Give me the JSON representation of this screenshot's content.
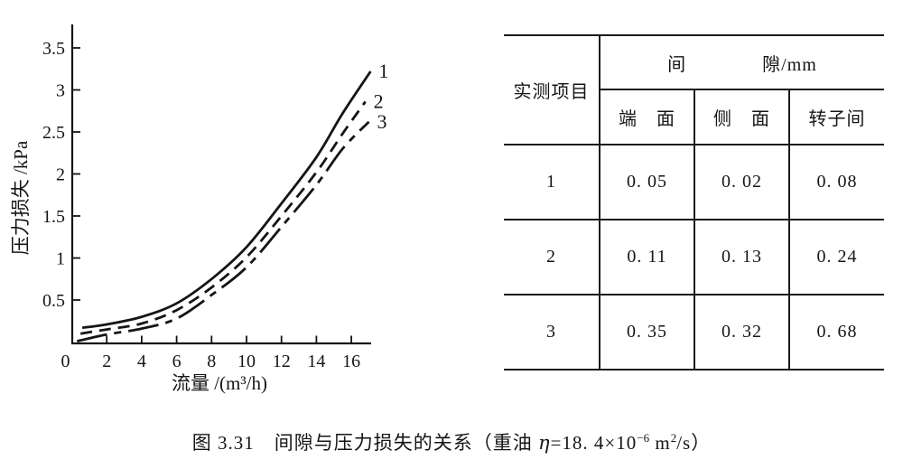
{
  "chart_data": {
    "type": "line",
    "title": "",
    "xlabel": "流量 /(m³/h)",
    "ylabel": "压力损失 /kPa",
    "xlim": [
      0,
      17.2
    ],
    "ylim": [
      0,
      3.8
    ],
    "x_ticks": [
      0,
      2,
      4,
      6,
      8,
      10,
      12,
      14,
      16
    ],
    "y_ticks": [
      0.5,
      1,
      1.5,
      2,
      2.5,
      3,
      3.5
    ],
    "grid": false,
    "legend_position": "labels-at-line-ends",
    "series": [
      {
        "name": "1",
        "style": "solid",
        "points": [
          [
            0.6,
            0.17
          ],
          [
            2,
            0.21
          ],
          [
            4,
            0.3
          ],
          [
            6,
            0.46
          ],
          [
            8,
            0.75
          ],
          [
            10,
            1.13
          ],
          [
            12,
            1.65
          ],
          [
            14,
            2.2
          ],
          [
            15.5,
            2.72
          ],
          [
            17.1,
            3.22
          ]
        ]
      },
      {
        "name": "2",
        "style": "dashed",
        "points": [
          [
            0.5,
            0.1
          ],
          [
            2,
            0.15
          ],
          [
            4,
            0.22
          ],
          [
            6,
            0.38
          ],
          [
            8,
            0.65
          ],
          [
            10,
            1.01
          ],
          [
            12,
            1.5
          ],
          [
            14,
            2.02
          ],
          [
            15.5,
            2.48
          ],
          [
            16.8,
            2.86
          ]
        ]
      },
      {
        "name": "3",
        "style": "dashdot",
        "points": [
          [
            0.3,
            0.01
          ],
          [
            2,
            0.09
          ],
          [
            4,
            0.16
          ],
          [
            6,
            0.28
          ],
          [
            8,
            0.56
          ],
          [
            10,
            0.89
          ],
          [
            12,
            1.37
          ],
          [
            14,
            1.87
          ],
          [
            15.5,
            2.3
          ],
          [
            17.0,
            2.62
          ]
        ]
      }
    ]
  },
  "table": {
    "corner_header": "实测项目",
    "group_header": "间　　　　隙/mm",
    "sub_headers": [
      "端　面",
      "侧　面",
      "转子间"
    ],
    "rows": [
      {
        "item": "1",
        "values": [
          "0. 05",
          "0. 02",
          "0. 08"
        ]
      },
      {
        "item": "2",
        "values": [
          "0. 11",
          "0. 13",
          "0. 24"
        ]
      },
      {
        "item": "3",
        "values": [
          "0. 35",
          "0. 32",
          "0. 68"
        ]
      }
    ]
  },
  "caption": {
    "p1": "图 3.31　间隙与压力损失的关系（重油 ",
    "eta": "η",
    "p2": "=18. 4×10",
    "exp": "−6",
    "p3": " m",
    "sq": "2",
    "p4": "/s）"
  }
}
